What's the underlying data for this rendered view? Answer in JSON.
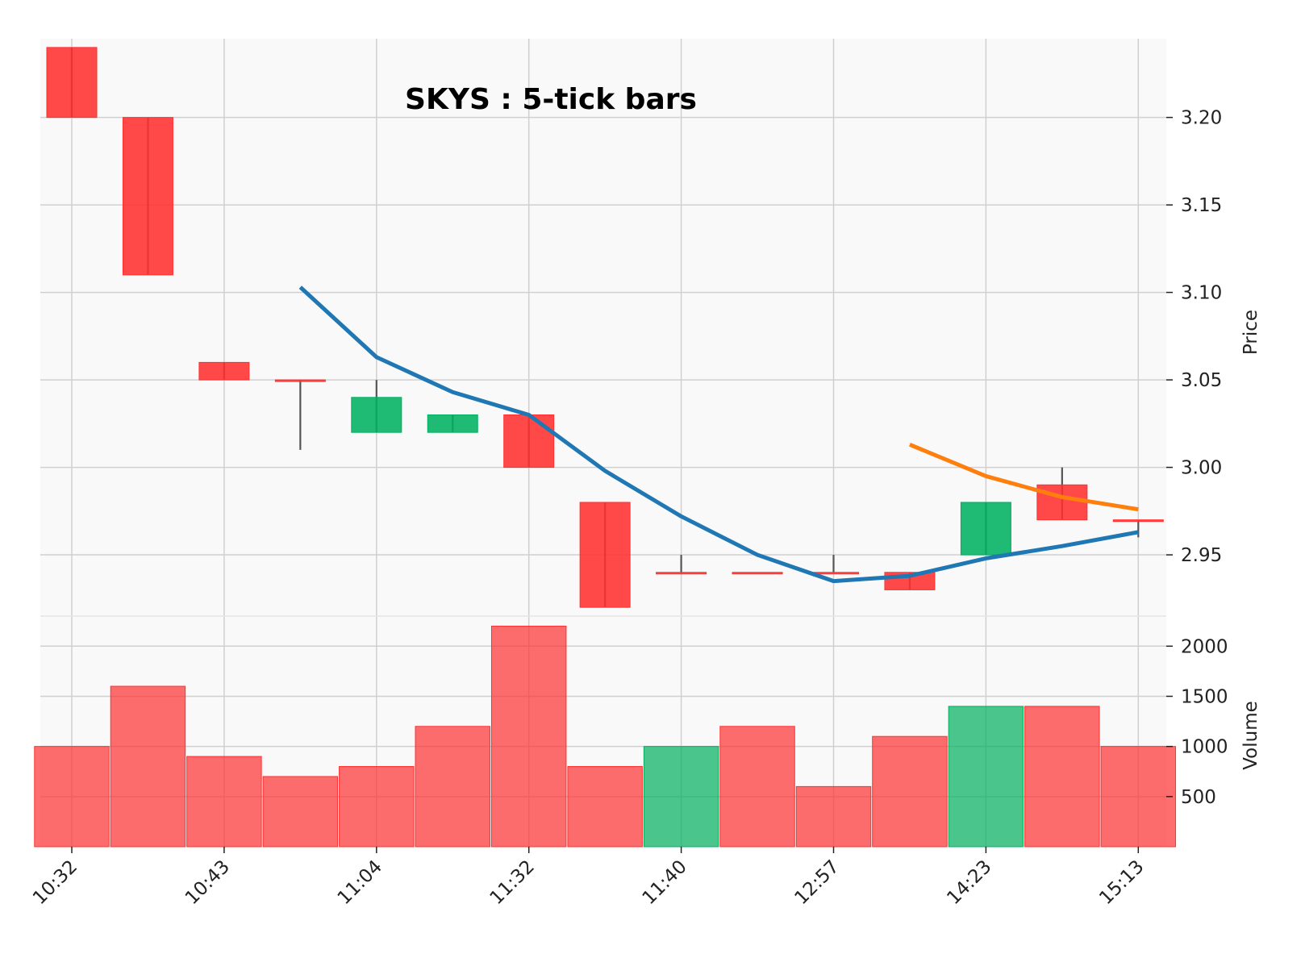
{
  "chart_data": {
    "type": "candlestick",
    "title": "SKYS : 5-tick bars",
    "price_label": "Price",
    "volume_label": "Volume",
    "x_tick_labels": [
      "10:32",
      "10:43",
      "11:04",
      "11:32",
      "11:40",
      "12:57",
      "14:23",
      "15:13"
    ],
    "price_ticks": [
      "2.95",
      "3.00",
      "3.05",
      "3.10",
      "3.15",
      "3.20"
    ],
    "volume_ticks": [
      "500",
      "1000",
      "1500",
      "2000"
    ],
    "price_ylim": [
      2.915,
      3.245
    ],
    "volume_ylim": [
      0,
      2300
    ],
    "candles": [
      {
        "open": 3.24,
        "high": 3.24,
        "low": 3.2,
        "close": 3.2,
        "volume": 1000
      },
      {
        "open": 3.2,
        "high": 3.2,
        "low": 3.11,
        "close": 3.11,
        "volume": 1600
      },
      {
        "open": 3.06,
        "high": 3.06,
        "low": 3.05,
        "close": 3.05,
        "volume": 900
      },
      {
        "open": 3.05,
        "high": 3.05,
        "low": 3.01,
        "close": 3.05,
        "volume": 700
      },
      {
        "open": 3.02,
        "high": 3.05,
        "low": 3.02,
        "close": 3.04,
        "volume": 800
      },
      {
        "open": 3.02,
        "high": 3.03,
        "low": 3.02,
        "close": 3.03,
        "volume": 1200
      },
      {
        "open": 3.03,
        "high": 3.03,
        "low": 3.0,
        "close": 3.0,
        "volume": 2200
      },
      {
        "open": 2.98,
        "high": 2.98,
        "low": 2.92,
        "close": 2.92,
        "volume": 800
      },
      {
        "open": 2.94,
        "high": 2.95,
        "low": 2.94,
        "close": 2.94,
        "volume": 1000
      },
      {
        "open": 2.94,
        "high": 2.94,
        "low": 2.94,
        "close": 2.94,
        "volume": 1200
      },
      {
        "open": 2.94,
        "high": 2.95,
        "low": 2.94,
        "close": 2.94,
        "volume": 600
      },
      {
        "open": 2.94,
        "high": 2.94,
        "low": 2.93,
        "close": 2.93,
        "volume": 1100
      },
      {
        "open": 2.95,
        "high": 2.98,
        "low": 2.95,
        "close": 2.98,
        "volume": 1400
      },
      {
        "open": 2.99,
        "high": 3.0,
        "low": 2.97,
        "close": 2.97,
        "volume": 1400
      },
      {
        "open": 2.97,
        "high": 2.97,
        "low": 2.96,
        "close": 2.97,
        "volume": 1000
      }
    ],
    "volume_colors": [
      "down",
      "down",
      "down",
      "down",
      "down",
      "down",
      "down",
      "down",
      "up",
      "down",
      "down",
      "down",
      "up",
      "down",
      "down"
    ],
    "moving_averages": [
      {
        "color": "#1f77b4",
        "values": [
          null,
          null,
          null,
          3.103,
          3.063,
          3.043,
          3.03,
          2.998,
          2.972,
          2.95,
          2.935,
          2.938,
          2.948,
          2.955,
          2.963
        ]
      },
      {
        "color": "#ff7f0e",
        "values": [
          null,
          null,
          null,
          null,
          null,
          null,
          null,
          null,
          null,
          null,
          null,
          3.013,
          2.995,
          2.983,
          2.976
        ]
      }
    ],
    "colors": {
      "up": "#00b060",
      "down": "#ff3030",
      "wick": "#555555",
      "grid": "#d0d0d0",
      "bg": "#f9f9f9"
    }
  }
}
